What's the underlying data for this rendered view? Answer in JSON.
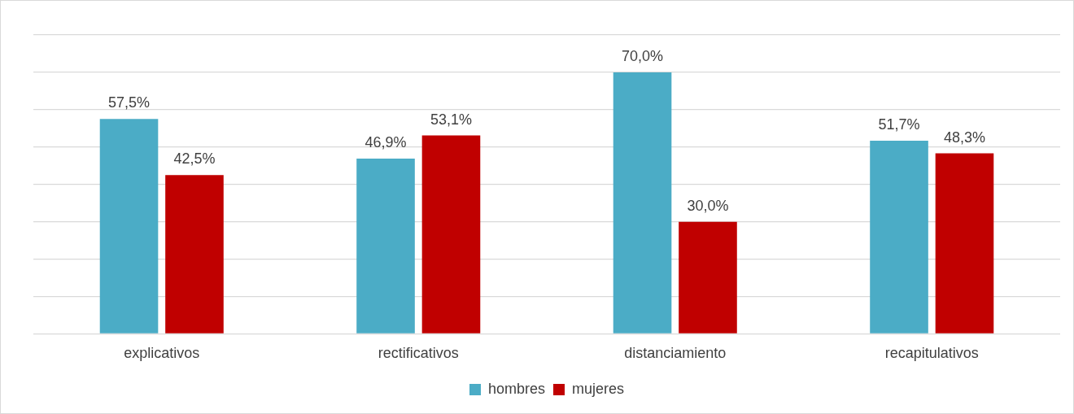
{
  "chart_data": {
    "type": "bar",
    "categories": [
      "explicativos",
      "rectificativos",
      "distanciamiento",
      "recapitulativos"
    ],
    "series": [
      {
        "name": "hombres",
        "color": "#4bacc6",
        "values": [
          57.5,
          46.9,
          70.0,
          51.7
        ],
        "value_labels": [
          "57,5%",
          "46,9%",
          "70,0%",
          "51,7%"
        ]
      },
      {
        "name": "mujeres",
        "color": "#c00000",
        "values": [
          42.5,
          53.1,
          30.0,
          48.3
        ],
        "value_labels": [
          "42,5%",
          "53,1%",
          "30,0%",
          "48,3%"
        ]
      }
    ],
    "ylim": [
      0,
      80
    ],
    "yticks": [
      {
        "value": 0,
        "label": null
      },
      {
        "value": 10,
        "label": null
      },
      {
        "value": 20,
        "label": null
      },
      {
        "value": 30,
        "label": null
      },
      {
        "value": 40,
        "label": null
      },
      {
        "value": 50,
        "label": null
      },
      {
        "value": 60,
        "label": null
      },
      {
        "value": 70,
        "label": null
      },
      {
        "value": 80,
        "label": null
      }
    ],
    "tick_labels": "x",
    "grid": "y",
    "legend": "bottom"
  }
}
